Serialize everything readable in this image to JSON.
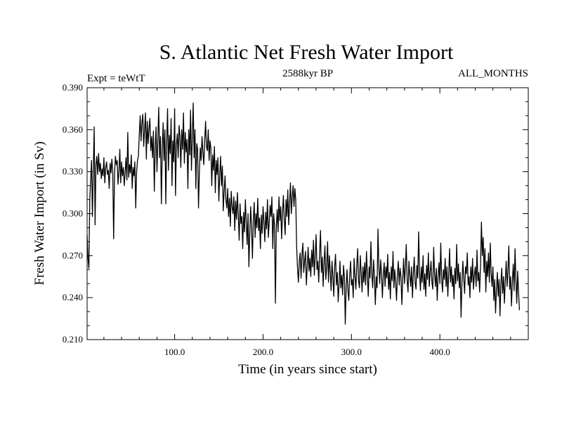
{
  "chart_data": {
    "type": "line",
    "title": "S. Atlantic Net Fresh Water Import",
    "subtitle_left": "Expt = teWtT",
    "subtitle_center": "2588kyr BP",
    "subtitle_right": "ALL_MONTHS",
    "xlabel": "Time (in years since start)",
    "ylabel": "Fresh Water Import (in Sv)",
    "xlim": [
      1,
      500
    ],
    "ylim": [
      0.21,
      0.39
    ],
    "x_ticks": [
      100,
      200,
      300,
      400
    ],
    "x_tick_labels": [
      "100.0",
      "200.0",
      "300.0",
      "400.0"
    ],
    "y_ticks": [
      0.21,
      0.24,
      0.27,
      0.3,
      0.33,
      0.36,
      0.39
    ],
    "y_tick_labels": [
      "0.210",
      "0.240",
      "0.270",
      "0.300",
      "0.330",
      "0.360",
      "0.390"
    ],
    "series": [
      {
        "name": "Fresh Water Import",
        "x_start": 1,
        "x_step": 1,
        "values": [
          0.285,
          0.268,
          0.261,
          0.31,
          0.324,
          0.338,
          0.298,
          0.33,
          0.362,
          0.292,
          0.335,
          0.341,
          0.328,
          0.343,
          0.33,
          0.336,
          0.325,
          0.332,
          0.327,
          0.34,
          0.322,
          0.333,
          0.337,
          0.328,
          0.331,
          0.318,
          0.336,
          0.329,
          0.339,
          0.33,
          0.282,
          0.328,
          0.341,
          0.335,
          0.338,
          0.321,
          0.33,
          0.346,
          0.322,
          0.337,
          0.327,
          0.333,
          0.32,
          0.329,
          0.34,
          0.324,
          0.358,
          0.326,
          0.335,
          0.329,
          0.342,
          0.318,
          0.333,
          0.327,
          0.337,
          0.304,
          0.33,
          0.338,
          0.341,
          0.356,
          0.37,
          0.352,
          0.365,
          0.371,
          0.348,
          0.36,
          0.372,
          0.339,
          0.366,
          0.35,
          0.361,
          0.368,
          0.345,
          0.355,
          0.34,
          0.359,
          0.316,
          0.347,
          0.362,
          0.33,
          0.352,
          0.376,
          0.34,
          0.355,
          0.307,
          0.346,
          0.365,
          0.338,
          0.36,
          0.307,
          0.35,
          0.375,
          0.331,
          0.356,
          0.343,
          0.368,
          0.32,
          0.352,
          0.337,
          0.375,
          0.313,
          0.349,
          0.357,
          0.34,
          0.363,
          0.355,
          0.333,
          0.36,
          0.346,
          0.372,
          0.336,
          0.358,
          0.344,
          0.353,
          0.318,
          0.36,
          0.342,
          0.374,
          0.331,
          0.355,
          0.379,
          0.34,
          0.36,
          0.318,
          0.35,
          0.346,
          0.304,
          0.33,
          0.347,
          0.338,
          0.355,
          0.344,
          0.335,
          0.352,
          0.366,
          0.348,
          0.345,
          0.36,
          0.338,
          0.352,
          0.347,
          0.32,
          0.342,
          0.331,
          0.348,
          0.315,
          0.338,
          0.328,
          0.34,
          0.309,
          0.328,
          0.341,
          0.32,
          0.334,
          0.302,
          0.316,
          0.327,
          0.31,
          0.304,
          0.318,
          0.298,
          0.311,
          0.291,
          0.316,
          0.305,
          0.3,
          0.312,
          0.288,
          0.309,
          0.296,
          0.315,
          0.299,
          0.281,
          0.307,
          0.293,
          0.298,
          0.275,
          0.301,
          0.287,
          0.31,
          0.294,
          0.278,
          0.3,
          0.262,
          0.286,
          0.305,
          0.29,
          0.268,
          0.296,
          0.308,
          0.283,
          0.3,
          0.29,
          0.311,
          0.288,
          0.297,
          0.275,
          0.299,
          0.286,
          0.305,
          0.294,
          0.28,
          0.301,
          0.289,
          0.31,
          0.283,
          0.294,
          0.306,
          0.298,
          0.312,
          0.275,
          0.3,
          0.292,
          0.236,
          0.29,
          0.303,
          0.287,
          0.312,
          0.295,
          0.305,
          0.282,
          0.3,
          0.313,
          0.296,
          0.285,
          0.31,
          0.298,
          0.317,
          0.292,
          0.307,
          0.322,
          0.3,
          0.312,
          0.32,
          0.305,
          0.318,
          0.31,
          0.276,
          0.261,
          0.251,
          0.266,
          0.272,
          0.254,
          0.27,
          0.279,
          0.258,
          0.266,
          0.273,
          0.249,
          0.262,
          0.276,
          0.259,
          0.268,
          0.255,
          0.274,
          0.262,
          0.281,
          0.256,
          0.27,
          0.285,
          0.26,
          0.266,
          0.251,
          0.272,
          0.288,
          0.258,
          0.269,
          0.248,
          0.265,
          0.277,
          0.253,
          0.262,
          0.28,
          0.251,
          0.27,
          0.259,
          0.245,
          0.266,
          0.255,
          0.241,
          0.262,
          0.271,
          0.249,
          0.258,
          0.237,
          0.25,
          0.266,
          0.247,
          0.256,
          0.242,
          0.263,
          0.255,
          0.221,
          0.248,
          0.26,
          0.245,
          0.238,
          0.256,
          0.266,
          0.249,
          0.253,
          0.24,
          0.268,
          0.255,
          0.246,
          0.263,
          0.275,
          0.252,
          0.247,
          0.27,
          0.258,
          0.244,
          0.262,
          0.251,
          0.265,
          0.249,
          0.273,
          0.256,
          0.241,
          0.262,
          0.254,
          0.28,
          0.258,
          0.247,
          0.267,
          0.255,
          0.235,
          0.255,
          0.247,
          0.289,
          0.262,
          0.25,
          0.267,
          0.258,
          0.24,
          0.256,
          0.265,
          0.248,
          0.262,
          0.254,
          0.271,
          0.246,
          0.258,
          0.239,
          0.262,
          0.252,
          0.273,
          0.247,
          0.26,
          0.251,
          0.238,
          0.257,
          0.266,
          0.249,
          0.261,
          0.255,
          0.235,
          0.253,
          0.268,
          0.25,
          0.262,
          0.278,
          0.252,
          0.244,
          0.266,
          0.256,
          0.248,
          0.262,
          0.24,
          0.257,
          0.269,
          0.251,
          0.246,
          0.263,
          0.254,
          0.287,
          0.258,
          0.245,
          0.262,
          0.251,
          0.27,
          0.246,
          0.257,
          0.241,
          0.263,
          0.253,
          0.272,
          0.248,
          0.258,
          0.266,
          0.251,
          0.246,
          0.276,
          0.257,
          0.248,
          0.261,
          0.238,
          0.255,
          0.265,
          0.25,
          0.279,
          0.254,
          0.244,
          0.26,
          0.253,
          0.268,
          0.248,
          0.262,
          0.241,
          0.257,
          0.275,
          0.251,
          0.262,
          0.248,
          0.256,
          0.239,
          0.261,
          0.25,
          0.278,
          0.252,
          0.264,
          0.247,
          0.258,
          0.226,
          0.251,
          0.266,
          0.254,
          0.243,
          0.262,
          0.257,
          0.272,
          0.249,
          0.255,
          0.24,
          0.262,
          0.251,
          0.268,
          0.246,
          0.256,
          0.262,
          0.248,
          0.274,
          0.252,
          0.258,
          0.244,
          0.263,
          0.294,
          0.27,
          0.283,
          0.258,
          0.275,
          0.244,
          0.266,
          0.255,
          0.272,
          0.251,
          0.279,
          0.258,
          0.248,
          0.262,
          0.238,
          0.253,
          0.229,
          0.246,
          0.258,
          0.241,
          0.253,
          0.227,
          0.25,
          0.261,
          0.243,
          0.255,
          0.236,
          0.252,
          0.266,
          0.248,
          0.259,
          0.277,
          0.246,
          0.255,
          0.234,
          0.251,
          0.264,
          0.245,
          0.275,
          0.253,
          0.236,
          0.259,
          0.244,
          0.231
        ]
      }
    ]
  }
}
